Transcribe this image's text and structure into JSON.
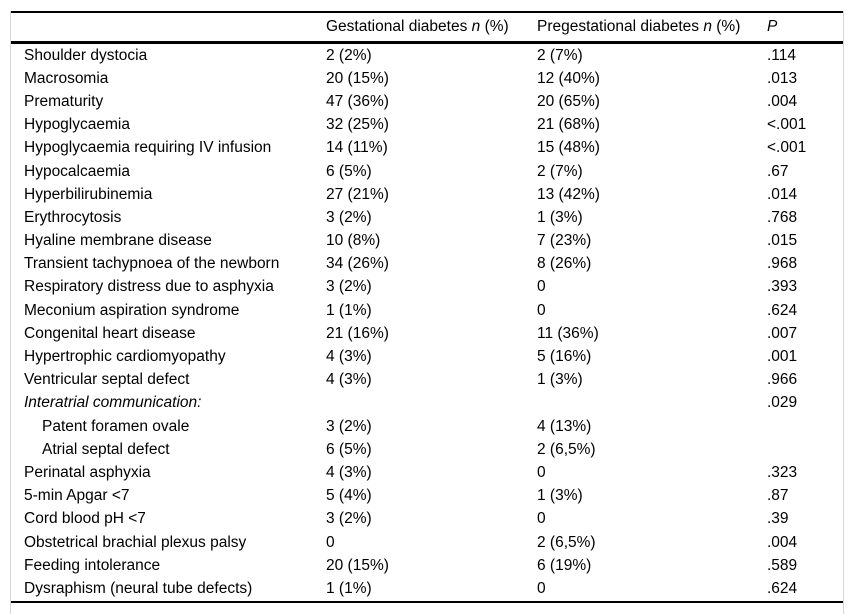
{
  "table": {
    "header": {
      "outcome": "",
      "gestational": {
        "label": "Gestational diabetes",
        "n": "n",
        "pct": "(%)"
      },
      "pregestational": {
        "label": "Pregestational diabetes",
        "n": "n",
        "pct": "(%)"
      },
      "p": "P"
    },
    "rows": [
      {
        "label": "Shoulder dystocia",
        "gestational": "2 (2%)",
        "pregestational": "2 (7%)",
        "p": ".114",
        "italic": false,
        "indent": false
      },
      {
        "label": "Macrosomia",
        "gestational": "20 (15%)",
        "pregestational": "12 (40%)",
        "p": ".013",
        "italic": false,
        "indent": false
      },
      {
        "label": "Prematurity",
        "gestational": "47 (36%)",
        "pregestational": "20 (65%)",
        "p": ".004",
        "italic": false,
        "indent": false
      },
      {
        "label": "Hypoglycaemia",
        "gestational": "32 (25%)",
        "pregestational": "21 (68%)",
        "p": "<.001",
        "italic": false,
        "indent": false
      },
      {
        "label": "Hypoglycaemia requiring IV infusion",
        "gestational": "14 (11%)",
        "pregestational": "15 (48%)",
        "p": "<.001",
        "italic": false,
        "indent": false
      },
      {
        "label": "Hypocalcaemia",
        "gestational": "6 (5%)",
        "pregestational": "2 (7%)",
        "p": ".67",
        "italic": false,
        "indent": false
      },
      {
        "label": "Hyperbilirubinemia",
        "gestational": "27 (21%)",
        "pregestational": "13 (42%)",
        "p": ".014",
        "italic": false,
        "indent": false
      },
      {
        "label": "Erythrocytosis",
        "gestational": "3 (2%)",
        "pregestational": "1 (3%)",
        "p": ".768",
        "italic": false,
        "indent": false
      },
      {
        "label": "Hyaline membrane disease",
        "gestational": "10 (8%)",
        "pregestational": "7 (23%)",
        "p": ".015",
        "italic": false,
        "indent": false
      },
      {
        "label": "Transient tachypnoea of the newborn",
        "gestational": "34 (26%)",
        "pregestational": "8 (26%)",
        "p": ".968",
        "italic": false,
        "indent": false
      },
      {
        "label": "Respiratory distress due to asphyxia",
        "gestational": "3 (2%)",
        "pregestational": "0",
        "p": ".393",
        "italic": false,
        "indent": false
      },
      {
        "label": "Meconium aspiration syndrome",
        "gestational": "1 (1%)",
        "pregestational": "0",
        "p": ".624",
        "italic": false,
        "indent": false
      },
      {
        "label": "Congenital heart disease",
        "gestational": "21 (16%)",
        "pregestational": "11 (36%)",
        "p": ".007",
        "italic": false,
        "indent": false
      },
      {
        "label": "Hypertrophic cardiomyopathy",
        "gestational": "4 (3%)",
        "pregestational": "5 (16%)",
        "p": ".001",
        "italic": false,
        "indent": false
      },
      {
        "label": "Ventricular septal defect",
        "gestational": "4 (3%)",
        "pregestational": "1 (3%)",
        "p": ".966",
        "italic": false,
        "indent": false
      },
      {
        "label": "Interatrial communication:",
        "gestational": "",
        "pregestational": "",
        "p": ".029",
        "italic": true,
        "indent": false
      },
      {
        "label": "Patent foramen ovale",
        "gestational": "3 (2%)",
        "pregestational": "4 (13%)",
        "p": "",
        "italic": false,
        "indent": true
      },
      {
        "label": "Atrial septal defect",
        "gestational": "6 (5%)",
        "pregestational": "2 (6,5%)",
        "p": "",
        "italic": false,
        "indent": true
      },
      {
        "label": "Perinatal asphyxia",
        "gestational": "4 (3%)",
        "pregestational": "0",
        "p": ".323",
        "italic": false,
        "indent": false
      },
      {
        "label": "5-min Apgar <7",
        "gestational": "5 (4%)",
        "pregestational": "1 (3%)",
        "p": ".87",
        "italic": false,
        "indent": false
      },
      {
        "label": "Cord blood pH <7",
        "gestational": "3 (2%)",
        "pregestational": "0",
        "p": ".39",
        "italic": false,
        "indent": false
      },
      {
        "label": "Obstetrical brachial plexus palsy",
        "gestational": "0",
        "pregestational": "2 (6,5%)",
        "p": ".004",
        "italic": false,
        "indent": false
      },
      {
        "label": "Feeding intolerance",
        "gestational": "20 (15%)",
        "pregestational": "6 (19%)",
        "p": ".589",
        "italic": false,
        "indent": false
      },
      {
        "label": "Dysraphism (neural tube defects)",
        "gestational": "1 (1%)",
        "pregestational": "0",
        "p": ".624",
        "italic": false,
        "indent": false
      }
    ]
  }
}
